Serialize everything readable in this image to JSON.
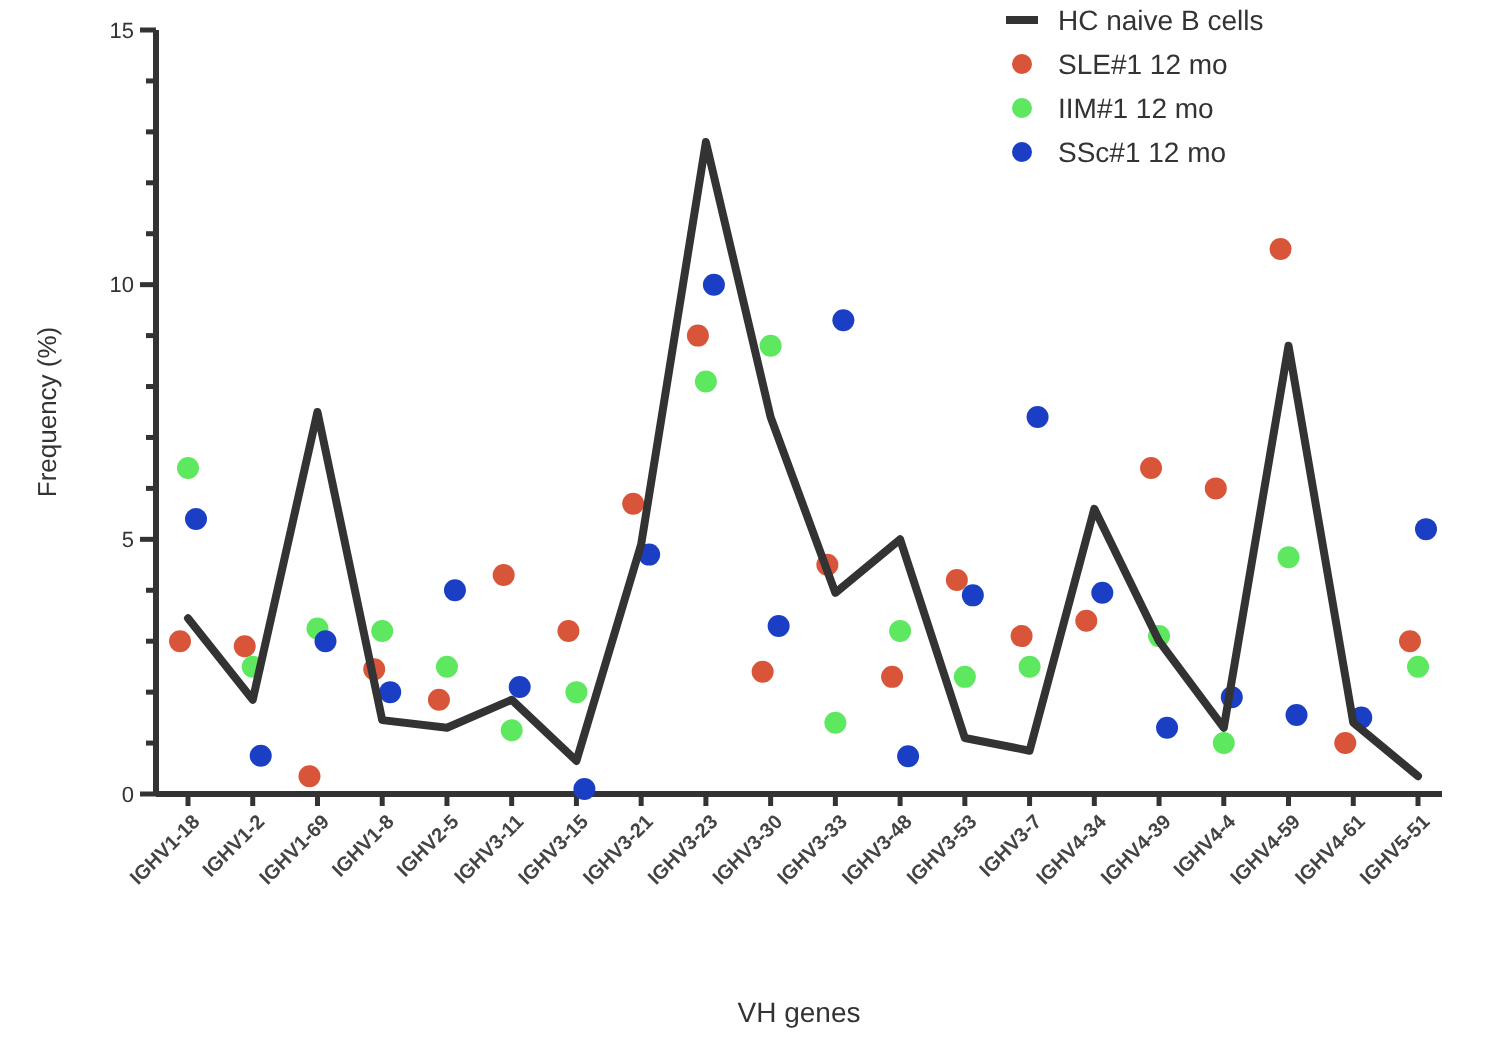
{
  "chart_data": {
    "type": "line",
    "xlabel": "VH genes",
    "ylabel": "Frequency (%)",
    "categories": [
      "IGHV1-18",
      "IGHV1-2",
      "IGHV1-69",
      "IGHV1-8",
      "IGHV2-5",
      "IGHV3-11",
      "IGHV3-15",
      "IGHV3-21",
      "IGHV3-23",
      "IGHV3-30",
      "IGHV3-33",
      "IGHV3-48",
      "IGHV3-53",
      "IGHV3-7",
      "IGHV4-34",
      "IGHV4-39",
      "IGHV4-4",
      "IGHV4-59",
      "IGHV4-61",
      "IGHV5-51"
    ],
    "ylim": [
      0,
      15
    ],
    "yticks": [
      0,
      {
        "value": 1,
        "label": null
      },
      {
        "value": 2,
        "label": null
      },
      {
        "value": 3,
        "label": null
      },
      {
        "value": 4,
        "label": null
      },
      5,
      {
        "value": 6,
        "label": null
      },
      {
        "value": 7,
        "label": null
      },
      {
        "value": 8,
        "label": null
      },
      {
        "value": 9,
        "label": null
      },
      10,
      {
        "value": 11,
        "label": null
      },
      {
        "value": 12,
        "label": null
      },
      {
        "value": 13,
        "label": null
      },
      {
        "value": 14,
        "label": null
      },
      15
    ],
    "grid": false,
    "legend": "top right",
    "series": [
      {
        "name": "HC naive B cells",
        "color": "#333333",
        "marker": "none",
        "values": [
          3.45,
          1.85,
          7.5,
          1.45,
          1.3,
          1.85,
          0.65,
          4.9,
          12.8,
          7.4,
          3.95,
          5.0,
          1.1,
          0.85,
          5.6,
          3.0,
          1.3,
          8.8,
          1.4,
          0.35
        ]
      },
      {
        "name": "SLE#1 12 mo",
        "type": "scatter",
        "color": "#d9553a",
        "marker": "circle",
        "values": [
          3.0,
          2.9,
          0.35,
          2.45,
          1.85,
          4.3,
          3.2,
          5.7,
          9.0,
          2.4,
          4.5,
          2.3,
          4.2,
          3.1,
          3.4,
          6.4,
          6.0,
          10.7,
          1.0,
          3.0
        ]
      },
      {
        "name": "IIM#1 12 mo",
        "type": "scatter",
        "color": "#5ee860",
        "marker": "circle",
        "values": [
          6.4,
          2.5,
          3.25,
          3.2,
          2.5,
          1.25,
          2.0,
          null,
          8.1,
          8.8,
          1.4,
          3.2,
          2.3,
          2.5,
          null,
          3.1,
          1.0,
          4.65,
          null,
          2.5
        ]
      },
      {
        "name": "SSc#1 12 mo",
        "type": "scatter",
        "color": "#1a3fc4",
        "marker": "circle",
        "values": [
          5.4,
          0.75,
          3.0,
          2.0,
          4.0,
          2.1,
          0.1,
          4.7,
          10.0,
          3.3,
          9.3,
          0.74,
          3.9,
          7.4,
          3.95,
          1.3,
          1.9,
          1.55,
          1.5,
          5.2
        ]
      }
    ]
  }
}
